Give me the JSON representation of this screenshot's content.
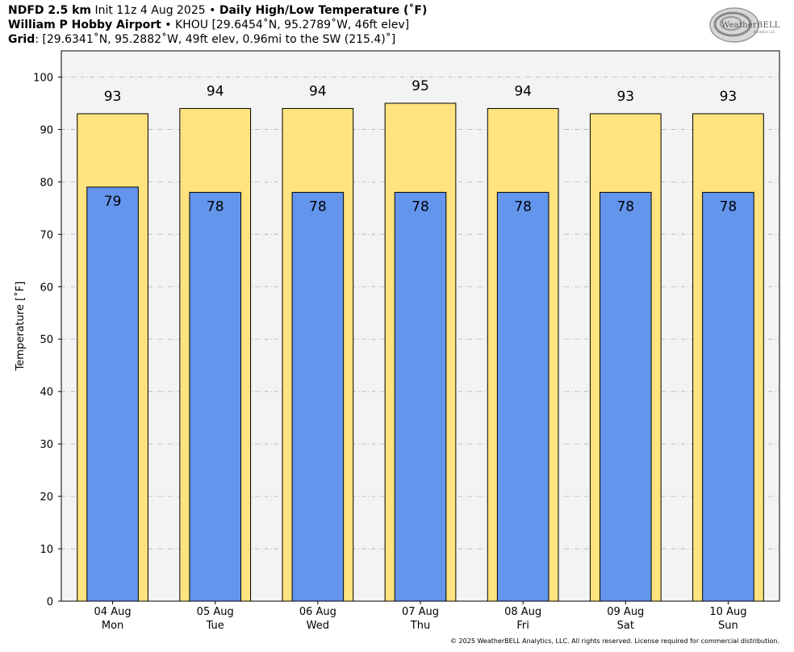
{
  "header": {
    "line1": {
      "model": "NDFD 2.5 km",
      "init": "Init 11z 4 Aug 2025",
      "sep": "•",
      "product": "Daily High/Low Temperature (˚F)"
    },
    "line2": {
      "station": "William P Hobby Airport",
      "sep": "•",
      "details": "KHOU [29.6454˚N, 95.2789˚W, 46ft elev]"
    },
    "line3": {
      "label": "Grid",
      "details": ": [29.6341˚N, 95.2882˚W, 49ft elev, 0.96mi to the SW (215.4)˚]"
    }
  },
  "logo": {
    "text": "WeatherBELL",
    "sub": "Analytics LLC"
  },
  "copyright": "© 2025 WeatherBELL Analytics, LLC. All rights reserved. License required for commercial distribution.",
  "chart_data": {
    "type": "bar",
    "categories": [
      [
        "04 Aug",
        "Mon"
      ],
      [
        "05 Aug",
        "Tue"
      ],
      [
        "06 Aug",
        "Wed"
      ],
      [
        "07 Aug",
        "Thu"
      ],
      [
        "08 Aug",
        "Fri"
      ],
      [
        "09 Aug",
        "Sat"
      ],
      [
        "10 Aug",
        "Sun"
      ]
    ],
    "series": [
      {
        "values": [
          93,
          94,
          94,
          95,
          94,
          93,
          93
        ],
        "color": "#ffe37e"
      },
      {
        "values": [
          79,
          78,
          78,
          78,
          78,
          78,
          78
        ],
        "color": "#6495ed"
      }
    ],
    "ylabel": "Temperature [˚F]",
    "ylim": [
      0,
      105
    ],
    "yticks": [
      0,
      10,
      20,
      30,
      40,
      50,
      60,
      70,
      80,
      90,
      100
    ],
    "grid": true,
    "plot_background": "#f4f3f4"
  }
}
